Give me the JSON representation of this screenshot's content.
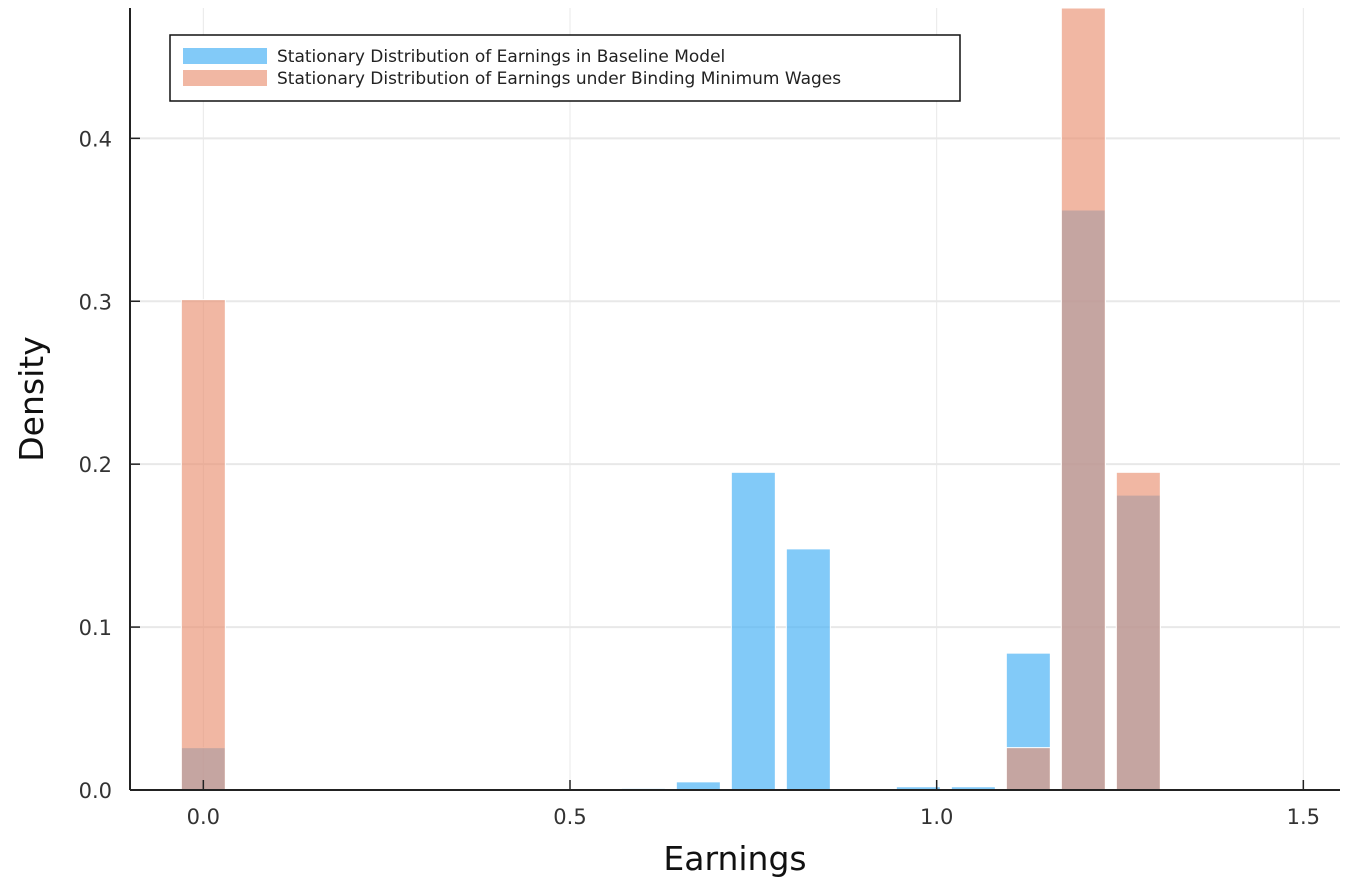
{
  "chart_data": {
    "type": "bar",
    "title": "",
    "xlabel": "Earnings",
    "ylabel": "Density",
    "xlim": [
      -0.1,
      1.55
    ],
    "ylim": [
      0.0,
      0.48
    ],
    "xticks": [
      0.0,
      0.5,
      1.0,
      1.5
    ],
    "xtick_labels": [
      "0.0",
      "0.5",
      "1.0",
      "1.5"
    ],
    "yticks": [
      0.0,
      0.1,
      0.2,
      0.3,
      0.4
    ],
    "ytick_labels": [
      "0.0",
      "0.1",
      "0.2",
      "0.3",
      "0.4"
    ],
    "grid": true,
    "legend_position": "top-left",
    "bar_width": 0.06,
    "series": [
      {
        "name": "Stationary Distribution of Earnings in Baseline Model",
        "color": "#4db3f5",
        "opacity": 0.7,
        "x": [
          0.0,
          0.6,
          0.675,
          0.75,
          0.825,
          0.975,
          1.05,
          1.125,
          1.2,
          1.275
        ],
        "values": [
          0.026,
          0.001,
          0.005,
          0.195,
          0.148,
          0.002,
          0.002,
          0.084,
          0.356,
          0.181
        ]
      },
      {
        "name": "Stationary Distribution of Earnings under Binding Minimum Wages",
        "color": "#e99171",
        "opacity": 0.65,
        "x": [
          0.0,
          1.125,
          1.2,
          1.275
        ],
        "values": [
          0.301,
          0.026,
          0.48,
          0.195
        ]
      }
    ]
  }
}
